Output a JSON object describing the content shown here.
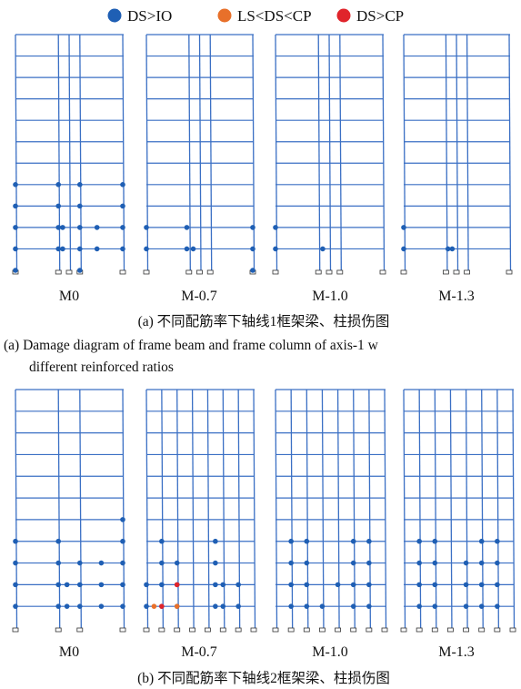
{
  "legend": [
    {
      "label": "DS>IO",
      "color": "#1f5fb4"
    },
    {
      "label": "LS<DS<CP",
      "color": "#e8702a"
    },
    {
      "label": "DS>CP",
      "color": "#e0242b"
    }
  ],
  "colors": {
    "frame": "#3a6fc4",
    "io": "#1f5fb4",
    "ls": "#e8702a",
    "cp": "#e0242b",
    "support": "#333333"
  },
  "panel_a": {
    "caption_cn": "(a) 不同配筋率下轴线1框架梁、柱损伤图",
    "caption_en_line1": "(a) Damage diagram of frame beam and frame column of axis-1 w",
    "caption_en_line2": "different reinforced ratios",
    "frames": [
      {
        "label": "M0",
        "stories": 11,
        "hinges": [
          [
            0,
            1
          ],
          [
            0,
            2
          ],
          [
            0,
            3
          ],
          [
            0,
            4
          ],
          [
            2,
            1
          ],
          [
            2,
            2
          ],
          [
            2,
            3
          ],
          [
            2,
            4
          ],
          [
            3,
            1
          ],
          [
            3,
            2
          ],
          [
            3,
            3
          ],
          [
            3,
            4
          ],
          [
            5,
            1
          ],
          [
            5,
            2
          ],
          [
            5,
            3
          ],
          [
            5,
            4
          ],
          [
            2.2,
            1
          ],
          [
            2.2,
            2
          ],
          [
            3.8,
            1
          ],
          [
            3.8,
            2
          ],
          [
            0,
            0
          ],
          [
            3,
            0
          ]
        ]
      },
      {
        "label": "M-0.7",
        "stories": 11,
        "hinges": [
          [
            0,
            1
          ],
          [
            0,
            2
          ],
          [
            1.9,
            1
          ],
          [
            1.9,
            2
          ],
          [
            2.2,
            1
          ],
          [
            5,
            1
          ],
          [
            5,
            2
          ],
          [
            5,
            0
          ]
        ]
      },
      {
        "label": "M-1.0",
        "stories": 11,
        "hinges": [
          [
            0,
            1
          ],
          [
            0,
            2
          ],
          [
            2.2,
            1
          ]
        ]
      },
      {
        "label": "M-1.3",
        "stories": 11,
        "hinges": [
          [
            0,
            1
          ],
          [
            0,
            2
          ],
          [
            2.1,
            1
          ],
          [
            2.3,
            1
          ]
        ]
      }
    ]
  },
  "panel_b": {
    "caption_cn": "(b) 不同配筋率下轴线2框架梁、柱损伤图",
    "frames": [
      {
        "label": "M0",
        "stories": 11,
        "hinges": [
          [
            0,
            1
          ],
          [
            0,
            2
          ],
          [
            0,
            3
          ],
          [
            0,
            4
          ],
          [
            2,
            1
          ],
          [
            2,
            2
          ],
          [
            2,
            3
          ],
          [
            2,
            4
          ],
          [
            3,
            1
          ],
          [
            3,
            2
          ],
          [
            3,
            3
          ],
          [
            4,
            1
          ],
          [
            4,
            2
          ],
          [
            4,
            3
          ],
          [
            5,
            1
          ],
          [
            5,
            2
          ],
          [
            5,
            3
          ],
          [
            5,
            4
          ],
          [
            5,
            5
          ],
          [
            2.4,
            1
          ],
          [
            2.4,
            2
          ]
        ]
      },
      {
        "label": "M-0.7",
        "stories": 11,
        "hinges": [
          [
            0,
            1
          ],
          [
            0,
            2
          ],
          [
            1,
            1
          ],
          [
            1,
            2
          ],
          [
            1,
            3
          ],
          [
            1,
            4
          ],
          [
            2,
            1
          ],
          [
            2,
            2
          ],
          [
            2,
            3
          ],
          [
            4.5,
            1
          ],
          [
            4.5,
            2
          ],
          [
            4.5,
            3
          ],
          [
            4.5,
            4
          ],
          [
            5,
            1
          ],
          [
            5,
            2
          ],
          [
            6,
            1
          ],
          [
            6,
            2
          ]
        ],
        "ls_hinges": [
          [
            0.5,
            1
          ],
          [
            2,
            1
          ]
        ],
        "cp_hinges": [
          [
            1,
            1
          ],
          [
            2,
            2
          ]
        ]
      },
      {
        "label": "M-1.0",
        "stories": 11,
        "hinges": [
          [
            1,
            1
          ],
          [
            1,
            2
          ],
          [
            1,
            3
          ],
          [
            1,
            4
          ],
          [
            2,
            1
          ],
          [
            2,
            2
          ],
          [
            2,
            3
          ],
          [
            2,
            4
          ],
          [
            4,
            2
          ],
          [
            5,
            1
          ],
          [
            5,
            2
          ],
          [
            5,
            3
          ],
          [
            5,
            4
          ],
          [
            6,
            1
          ],
          [
            6,
            2
          ],
          [
            6,
            3
          ],
          [
            6,
            4
          ],
          [
            3,
            1
          ]
        ]
      },
      {
        "label": "M-1.3",
        "stories": 11,
        "hinges": [
          [
            1,
            1
          ],
          [
            1,
            2
          ],
          [
            1,
            3
          ],
          [
            1,
            4
          ],
          [
            2,
            1
          ],
          [
            2,
            2
          ],
          [
            2,
            3
          ],
          [
            2,
            4
          ],
          [
            4,
            1
          ],
          [
            4,
            2
          ],
          [
            4,
            3
          ],
          [
            5,
            1
          ],
          [
            5,
            2
          ],
          [
            5,
            3
          ],
          [
            5,
            4
          ],
          [
            6,
            1
          ],
          [
            6,
            2
          ],
          [
            6,
            3
          ],
          [
            6,
            4
          ]
        ]
      }
    ]
  }
}
